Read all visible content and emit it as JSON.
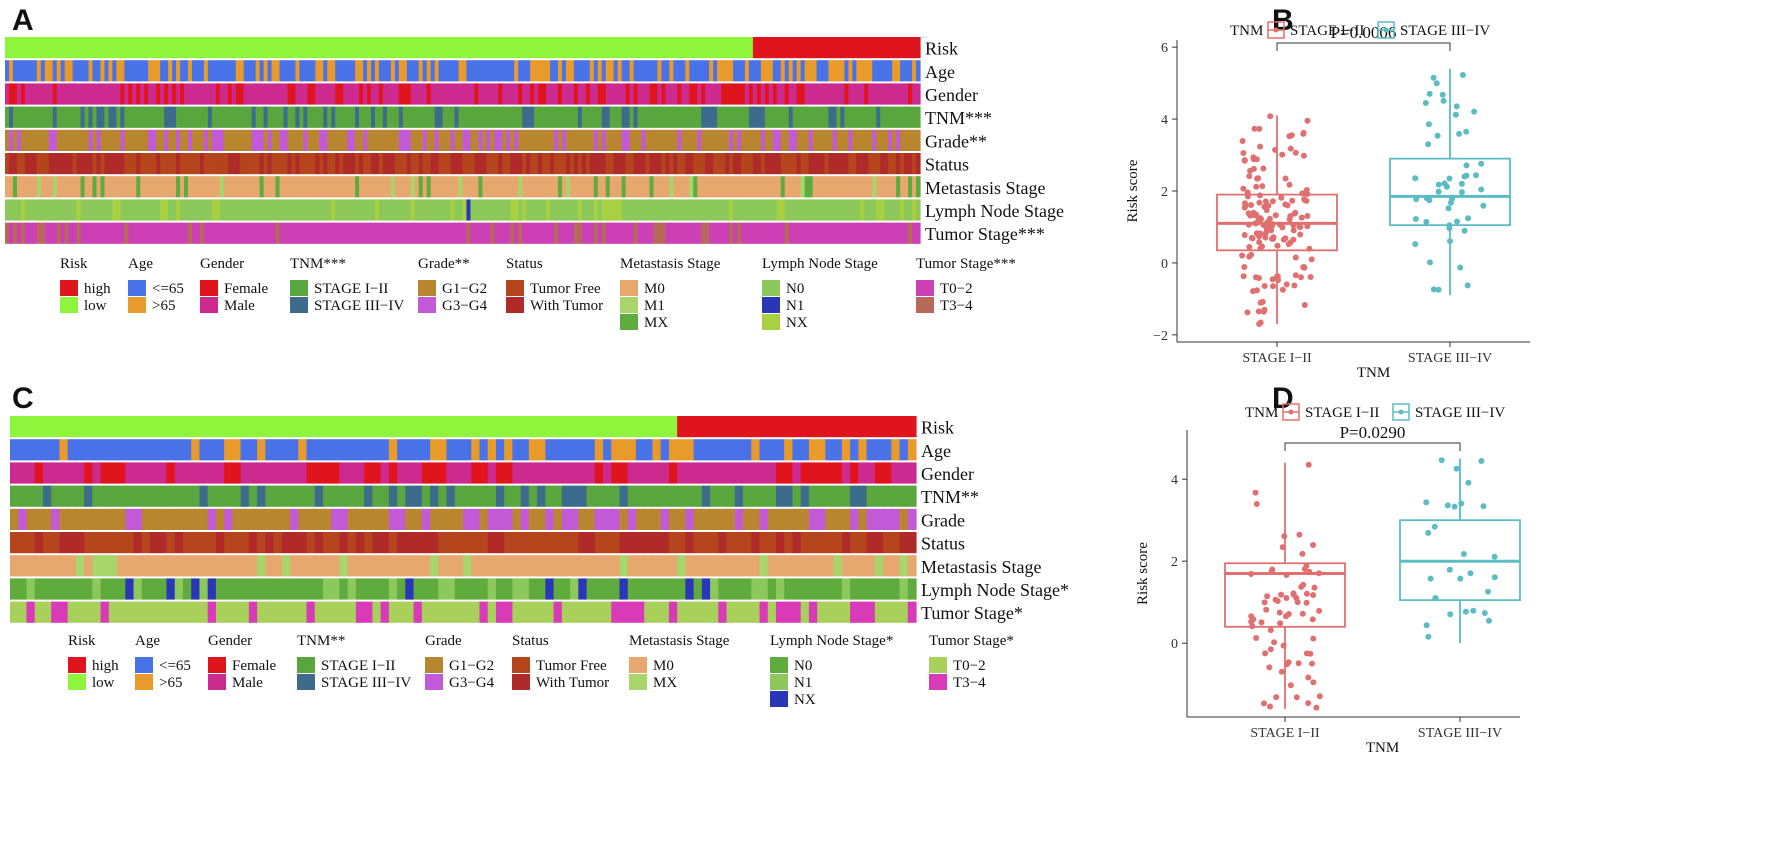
{
  "panels": {
    "a": "A",
    "b": "B",
    "c": "C",
    "d": "D"
  },
  "colors": {
    "risk_high": "#e0141c",
    "risk_low": "#8ef53c",
    "age_le65": "#4a72e8",
    "age_gt65": "#e89a2a",
    "female": "#e0141c",
    "male": "#cc2a8f",
    "stage12": "#5aa63e",
    "stage34": "#3d6b8c",
    "g12": "#b8862e",
    "g34": "#c25ad8",
    "tumor_free": "#b5451c",
    "with_tumor": "#b02a2a",
    "m0": "#e6a86e",
    "m1": "#a8d66a",
    "mx": "#5fab3e",
    "n0": "#8cc85a",
    "n1": "#2b35b8",
    "nx": "#a8d040",
    "t02": "#cc3fb5",
    "t34": "#b86a5a",
    "t02c": "#a8d05a",
    "t34c": "#d83ab8",
    "box_a": "#e07070",
    "box_b": "#5bbcc4"
  },
  "chart_data": [
    {
      "type": "heatmap",
      "panel": "A",
      "rows": [
        "Risk",
        "Age",
        "Gender",
        "TNM***",
        "Grade**",
        "Status",
        "Metastasis Stage",
        "Lymph Node Stage",
        "Tumor Stage***"
      ],
      "legend": [
        {
          "title": "Risk",
          "items": [
            {
              "label": "high",
              "color": "risk_high"
            },
            {
              "label": "low",
              "color": "risk_low"
            }
          ]
        },
        {
          "title": "Age",
          "items": [
            {
              "label": "<=65",
              "color": "age_le65"
            },
            {
              "label": ">65",
              "color": "age_gt65"
            }
          ]
        },
        {
          "title": "Gender",
          "items": [
            {
              "label": "Female",
              "color": "female"
            },
            {
              "label": "Male",
              "color": "male"
            }
          ]
        },
        {
          "title": "TNM***",
          "items": [
            {
              "label": "STAGE I−II",
              "color": "stage12"
            },
            {
              "label": "STAGE III−IV",
              "color": "stage34"
            }
          ]
        },
        {
          "title": "Grade**",
          "items": [
            {
              "label": "G1−G2",
              "color": "g12"
            },
            {
              "label": "G3−G4",
              "color": "g34"
            }
          ]
        },
        {
          "title": "Status",
          "items": [
            {
              "label": "Tumor Free",
              "color": "tumor_free"
            },
            {
              "label": "With Tumor",
              "color": "with_tumor"
            }
          ]
        },
        {
          "title": "Metastasis Stage",
          "items": [
            {
              "label": "M0",
              "color": "m0"
            },
            {
              "label": "M1",
              "color": "m1"
            },
            {
              "label": "MX",
              "color": "mx"
            }
          ]
        },
        {
          "title": "Lymph Node Stage",
          "items": [
            {
              "label": "N0",
              "color": "n0"
            },
            {
              "label": "N1",
              "color": "n1"
            },
            {
              "label": "NX",
              "color": "nx"
            }
          ]
        },
        {
          "title": "Tumor Stage***",
          "items": [
            {
              "label": "T0−2",
              "color": "t02"
            },
            {
              "label": "T3−4",
              "color": "t34"
            }
          ]
        }
      ]
    },
    {
      "type": "box",
      "panel": "B",
      "legend_title": "TNM",
      "groups": [
        "STAGE I−II",
        "STAGE III−IV"
      ],
      "xlabel": "TNM",
      "ylabel": "Risk score",
      "ylim": [
        -2.2,
        6.2
      ],
      "yticks": [
        -2,
        0,
        2,
        4,
        6
      ],
      "pvalue": "P=0.0006",
      "boxes": [
        {
          "name": "STAGE I−II",
          "min": -1.7,
          "q1": 0.35,
          "median": 1.1,
          "q3": 1.9,
          "max": 4.1
        },
        {
          "name": "STAGE III−IV",
          "min": -0.9,
          "q1": 1.05,
          "median": 1.85,
          "q3": 2.9,
          "max": 5.4
        }
      ]
    },
    {
      "type": "heatmap",
      "panel": "C",
      "rows": [
        "Risk",
        "Age",
        "Gender",
        "TNM**",
        "Grade",
        "Status",
        "Metastasis Stage",
        "Lymph Node Stage*",
        "Tumor Stage*"
      ],
      "legend": [
        {
          "title": "Risk",
          "items": [
            {
              "label": "high",
              "color": "risk_high"
            },
            {
              "label": "low",
              "color": "risk_low"
            }
          ]
        },
        {
          "title": "Age",
          "items": [
            {
              "label": "<=65",
              "color": "age_le65"
            },
            {
              "label": ">65",
              "color": "age_gt65"
            }
          ]
        },
        {
          "title": "Gender",
          "items": [
            {
              "label": "Female",
              "color": "female"
            },
            {
              "label": "Male",
              "color": "male"
            }
          ]
        },
        {
          "title": "TNM**",
          "items": [
            {
              "label": "STAGE I−II",
              "color": "stage12"
            },
            {
              "label": "STAGE III−IV",
              "color": "stage34"
            }
          ]
        },
        {
          "title": "Grade",
          "items": [
            {
              "label": "G1−G2",
              "color": "g12"
            },
            {
              "label": "G3−G4",
              "color": "g34"
            }
          ]
        },
        {
          "title": "Status",
          "items": [
            {
              "label": "Tumor Free",
              "color": "tumor_free"
            },
            {
              "label": "With Tumor",
              "color": "with_tumor"
            }
          ]
        },
        {
          "title": "Metastasis Stage",
          "items": [
            {
              "label": "M0",
              "color": "m0"
            },
            {
              "label": "MX",
              "color": "m1"
            }
          ]
        },
        {
          "title": "Lymph Node Stage*",
          "items": [
            {
              "label": "N0",
              "color": "mx"
            },
            {
              "label": "N1",
              "color": "n0"
            },
            {
              "label": "NX",
              "color": "n1"
            }
          ]
        },
        {
          "title": "Tumor Stage*",
          "items": [
            {
              "label": "T0−2",
              "color": "t02c"
            },
            {
              "label": "T3−4",
              "color": "t34c"
            }
          ]
        }
      ]
    },
    {
      "type": "box",
      "panel": "D",
      "legend_title": "TNM",
      "groups": [
        "STAGE I−II",
        "STAGE III−IV"
      ],
      "xlabel": "TNM",
      "ylabel": "Risk score",
      "ylim": [
        -1.8,
        5.2
      ],
      "yticks": [
        0,
        2,
        4
      ],
      "pvalue": "P=0.0290",
      "boxes": [
        {
          "name": "STAGE I−II",
          "min": -1.6,
          "q1": 0.4,
          "median": 1.7,
          "q3": 1.95,
          "max": 4.4
        },
        {
          "name": "STAGE III−IV",
          "min": 0.0,
          "q1": 1.05,
          "median": 2.0,
          "q3": 3.0,
          "max": 4.5
        }
      ]
    }
  ]
}
